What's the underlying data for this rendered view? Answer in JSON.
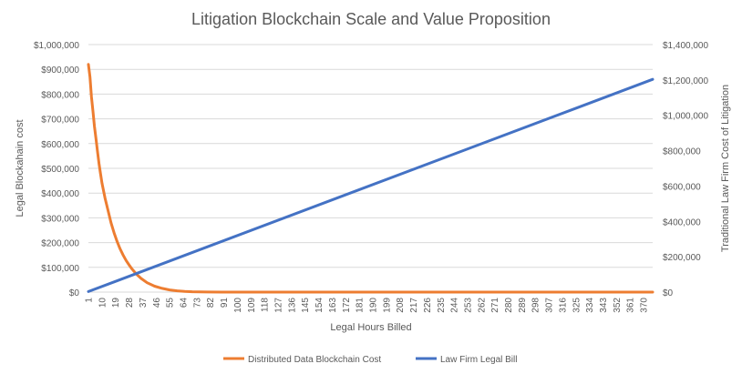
{
  "chart_data": {
    "type": "line",
    "title": "Litigation Blockchain Scale and Value Proposition",
    "xlabel": "Legal Hours Billed",
    "ylabel_left": "Legal Blockahain cost",
    "ylabel_right": "Traditional Law Firm Cost of Litigation",
    "x_range": [
      1,
      376
    ],
    "x_tick_labels": [
      "1",
      "10",
      "19",
      "28",
      "37",
      "46",
      "55",
      "64",
      "73",
      "82",
      "91",
      "100",
      "109",
      "118",
      "127",
      "136",
      "145",
      "154",
      "163",
      "172",
      "181",
      "190",
      "199",
      "208",
      "217",
      "226",
      "235",
      "244",
      "253",
      "262",
      "271",
      "280",
      "289",
      "298",
      "307",
      "316",
      "325",
      "334",
      "343",
      "352",
      "361",
      "370"
    ],
    "ylim_left": [
      0,
      1000000
    ],
    "y_left_ticks": [
      "$0",
      "$100,000",
      "$200,000",
      "$300,000",
      "$400,000",
      "$500,000",
      "$600,000",
      "$700,000",
      "$800,000",
      "$900,000",
      "$1,000,000"
    ],
    "ylim_right": [
      0,
      1400000
    ],
    "y_right_ticks": [
      "$0",
      "$200,000",
      "$400,000",
      "$600,000",
      "$800,000",
      "$1,000,000",
      "$1,200,000",
      "$1,400,000"
    ],
    "grid": true,
    "legend_position": "bottom",
    "series": [
      {
        "name": "Distributed Data Blockchain Cost",
        "axis": "left",
        "color": "#ED7D31",
        "points": [
          [
            1,
            920000
          ],
          [
            2,
            870000
          ],
          [
            3,
            790000
          ],
          [
            4,
            730000
          ],
          [
            5,
            670000
          ],
          [
            6,
            620000
          ],
          [
            7,
            570000
          ],
          [
            8,
            520000
          ],
          [
            9,
            480000
          ],
          [
            10,
            440000
          ],
          [
            12,
            380000
          ],
          [
            14,
            330000
          ],
          [
            16,
            280000
          ],
          [
            18,
            240000
          ],
          [
            20,
            205000
          ],
          [
            22,
            175000
          ],
          [
            24,
            150000
          ],
          [
            26,
            128000
          ],
          [
            28,
            110000
          ],
          [
            30,
            93000
          ],
          [
            33,
            72000
          ],
          [
            36,
            55000
          ],
          [
            40,
            38000
          ],
          [
            45,
            24000
          ],
          [
            50,
            15000
          ],
          [
            55,
            9000
          ],
          [
            60,
            5000
          ],
          [
            65,
            3000
          ],
          [
            70,
            1500
          ],
          [
            75,
            700
          ],
          [
            80,
            300
          ],
          [
            90,
            0
          ],
          [
            376,
            0
          ]
        ]
      },
      {
        "name": "Law Firm Legal Bill",
        "axis": "right",
        "color": "#4472C4",
        "points": [
          [
            1,
            3200
          ],
          [
            376,
            1203200
          ]
        ]
      }
    ]
  }
}
